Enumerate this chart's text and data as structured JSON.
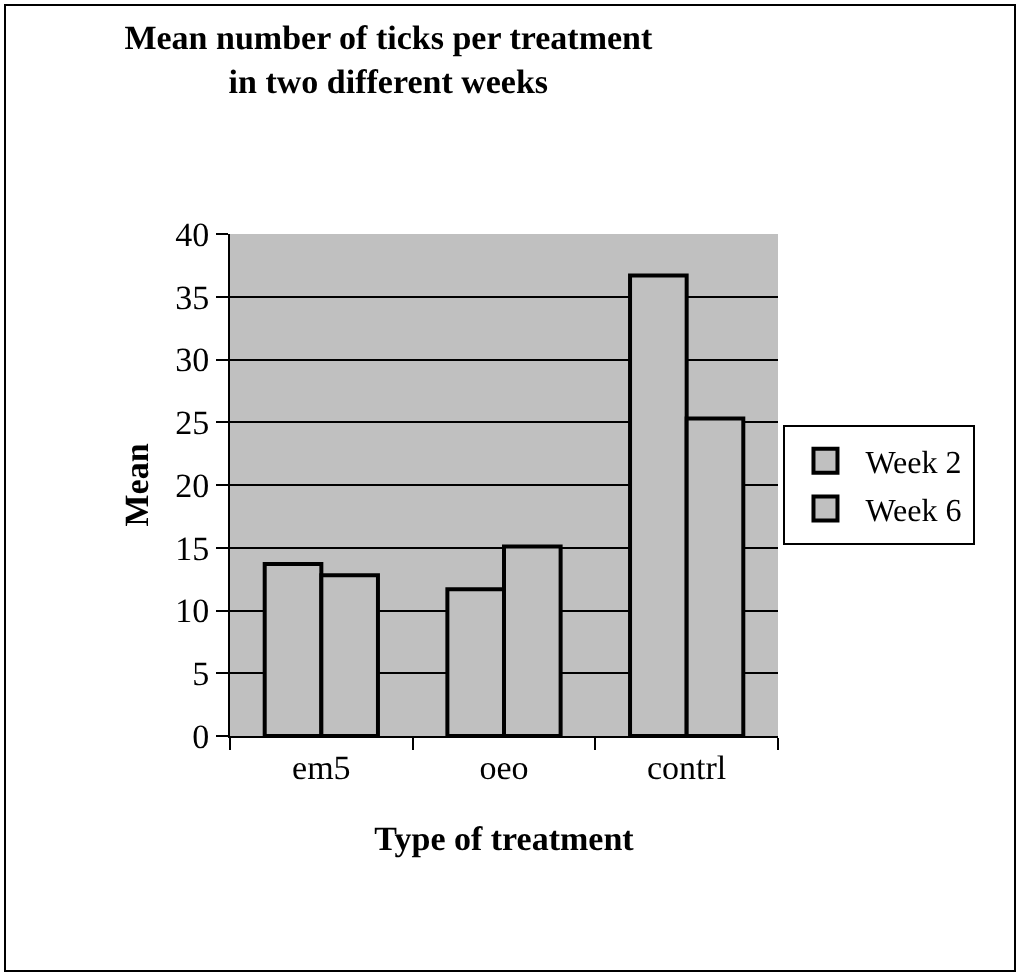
{
  "chart_data": {
    "type": "bar",
    "title": "Mean number of ticks per treatment\nin two different weeks",
    "xlabel": "Type of treatment",
    "ylabel": "Mean",
    "categories": [
      "em5",
      "oeo",
      "contrl"
    ],
    "series": [
      {
        "name": "Week 2",
        "color": "#c0c0c0",
        "values": [
          13.7,
          11.7,
          36.7
        ]
      },
      {
        "name": "Week 6",
        "color": "#c0c0c0",
        "values": [
          12.8,
          15.1,
          25.3
        ]
      }
    ],
    "ylim": [
      0,
      40
    ],
    "yticks": [
      0,
      5,
      10,
      15,
      20,
      25,
      30,
      35,
      40
    ],
    "grid": "y",
    "legend": "right"
  }
}
